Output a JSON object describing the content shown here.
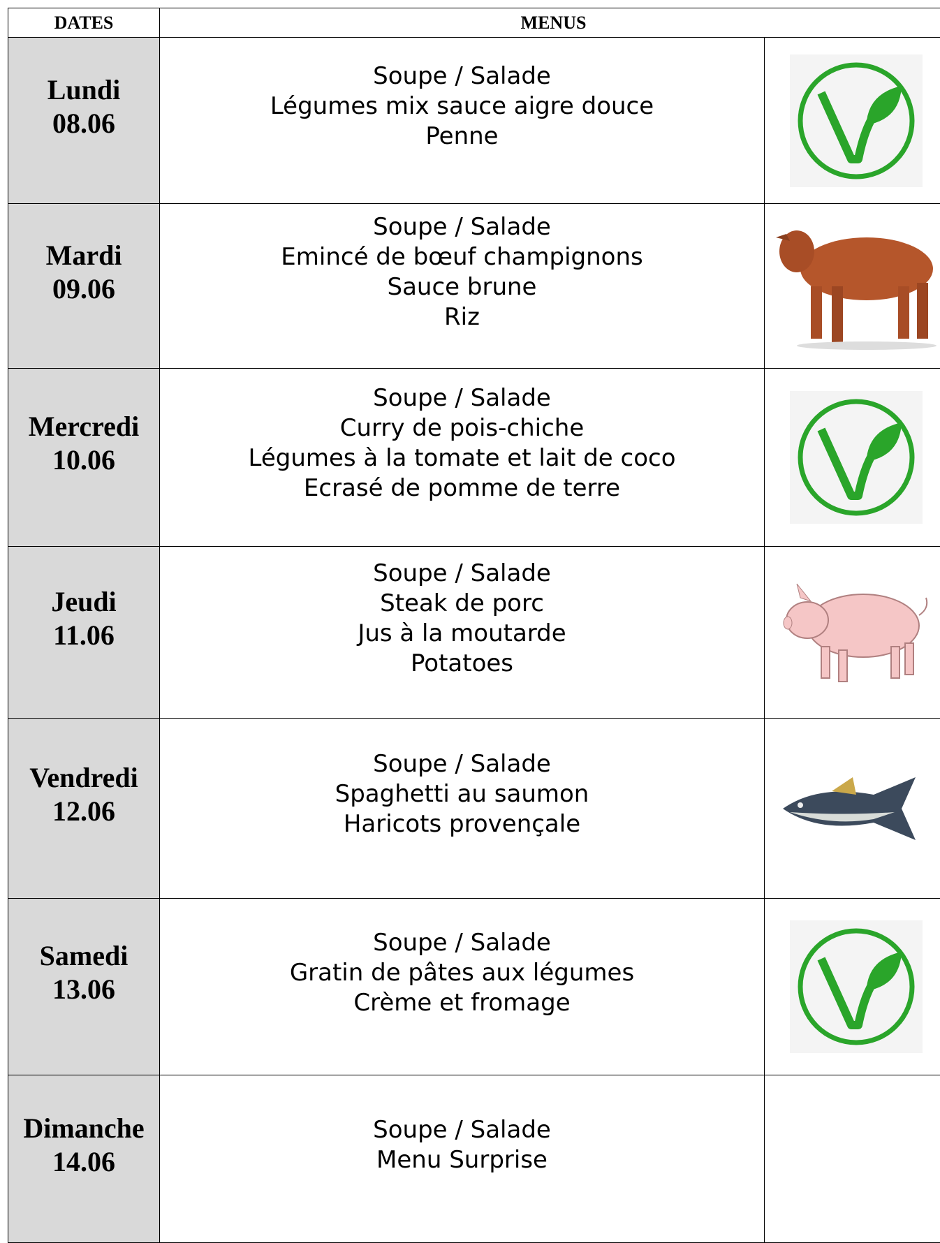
{
  "header": {
    "dates": "DATES",
    "menus": "MENUS"
  },
  "rows": [
    {
      "day": "Lundi",
      "date": "08.06",
      "menu": [
        "Soupe / Salade",
        "Légumes mix sauce aigre douce",
        "Penne"
      ]
    },
    {
      "day": "Mardi",
      "date": "09.06",
      "menu": [
        "Soupe / Salade",
        "Emincé de bœuf champignons",
        "Sauce brune",
        "Riz"
      ]
    },
    {
      "day": "Mercredi",
      "date": "10.06",
      "menu": [
        "Soupe / Salade",
        "Curry de pois-chiche",
        "Légumes à la tomate et lait de coco",
        "Ecrasé de pomme de terre"
      ]
    },
    {
      "day": "Jeudi",
      "date": "11.06",
      "menu": [
        "Soupe / Salade",
        "Steak de porc",
        "Jus à la moutarde",
        "Potatoes"
      ]
    },
    {
      "day": "Vendredi",
      "date": "12.06",
      "menu": [
        "Soupe / Salade",
        "Spaghetti au saumon",
        "Haricots provençale"
      ]
    },
    {
      "day": "Samedi",
      "date": "13.06",
      "menu": [
        "Soupe / Salade",
        "Gratin de pâtes aux légumes",
        "Crème et fromage"
      ]
    },
    {
      "day": "Dimanche",
      "date": "14.06",
      "menu": [
        "Soupe / Salade",
        "Menu Surprise"
      ]
    }
  ]
}
